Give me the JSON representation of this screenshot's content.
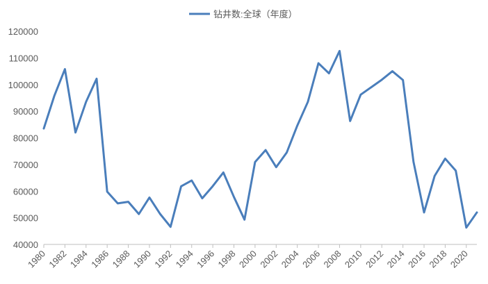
{
  "chart_data": {
    "type": "line",
    "title": "",
    "xlabel": "",
    "ylabel": "",
    "ylim": [
      40000,
      120000
    ],
    "y_ticks": [
      40000,
      50000,
      60000,
      70000,
      80000,
      90000,
      100000,
      110000,
      120000
    ],
    "x_ticks": [
      1980,
      1982,
      1984,
      1986,
      1988,
      1990,
      1992,
      1994,
      1996,
      1998,
      2000,
      2002,
      2004,
      2006,
      2008,
      2010,
      2012,
      2014,
      2016,
      2018,
      2020
    ],
    "x_range": [
      1980,
      2021
    ],
    "grid": false,
    "legend": {
      "position": "top-center",
      "entries": [
        "钻井数:全球（年度）"
      ]
    },
    "colors": {
      "series": "#4a7ebb",
      "axis": "#bfbfbf",
      "text": "#595959"
    },
    "x": [
      1980,
      1981,
      1982,
      1983,
      1984,
      1985,
      1986,
      1987,
      1988,
      1989,
      1990,
      1991,
      1992,
      1993,
      1994,
      1995,
      1996,
      1997,
      1998,
      1999,
      2000,
      2001,
      2002,
      2003,
      2004,
      2005,
      2006,
      2007,
      2008,
      2009,
      2010,
      2011,
      2012,
      2013,
      2014,
      2015,
      2016,
      2017,
      2018,
      2019,
      2020,
      2021
    ],
    "series": [
      {
        "name": "钻井数:全球（年度）",
        "values": [
          83500,
          95800,
          105800,
          82000,
          93500,
          102200,
          59800,
          55400,
          56000,
          51400,
          57600,
          51500,
          46600,
          61800,
          64000,
          57300,
          61900,
          67000,
          57800,
          49300,
          70900,
          75400,
          69000,
          74500,
          84600,
          93500,
          108000,
          104200,
          112600,
          86300,
          96200,
          99000,
          101800,
          105000,
          101700,
          71000,
          52000,
          65700,
          72200,
          67700,
          46300,
          52000
        ]
      }
    ]
  }
}
